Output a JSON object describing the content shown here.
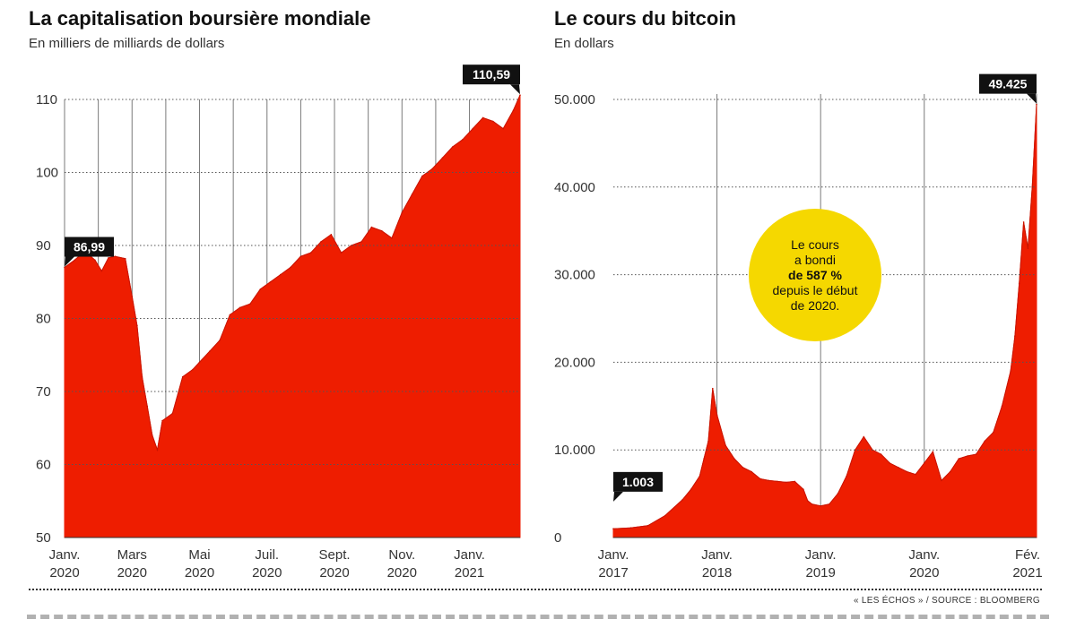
{
  "charts": [
    {
      "title": "La capitalisation boursière mondiale",
      "subtitle": "En milliers de milliards de dollars",
      "callouts": {
        "start": "86,99",
        "end": "110,59"
      },
      "y_ticks": [
        "110",
        "100",
        "90",
        "80",
        "70",
        "60",
        "50"
      ],
      "x_labels": [
        {
          "line1": "Janv.",
          "line2": "2020"
        },
        {
          "line1": "Mars",
          "line2": "2020"
        },
        {
          "line1": "Mai",
          "line2": "2020"
        },
        {
          "line1": "Juil.",
          "line2": "2020"
        },
        {
          "line1": "Sept.",
          "line2": "2020"
        },
        {
          "line1": "Nov.",
          "line2": "2020"
        },
        {
          "line1": "Janv.",
          "line2": "2021"
        }
      ],
      "colors": {
        "fill": "#ee1d00",
        "callout_bg": "#111111",
        "grid": "#888888"
      }
    },
    {
      "title": "Le cours du bitcoin",
      "subtitle": "En dollars",
      "callouts": {
        "start": "1.003",
        "end": "49.425"
      },
      "annotation": {
        "line1": "Le cours",
        "line2": "a bondi",
        "line3": "de 587 %",
        "line4": "depuis le début",
        "line5": "de 2020."
      },
      "y_ticks": [
        "50.000",
        "40.000",
        "30.000",
        "20.000",
        "10.000",
        "0"
      ],
      "x_labels": [
        {
          "line1": "Janv.",
          "line2": "2017"
        },
        {
          "line1": "Janv.",
          "line2": "2018"
        },
        {
          "line1": "Janv.",
          "line2": "2019"
        },
        {
          "line1": "Janv.",
          "line2": "2020"
        },
        {
          "line1": "Fév.",
          "line2": "2021"
        }
      ],
      "colors": {
        "fill": "#ee1d00",
        "callout_bg": "#111111",
        "bubble": "#f5d800"
      }
    }
  ],
  "source": "« LES ÉCHOS » / SOURCE : BLOOMBERG",
  "chart_data": [
    {
      "type": "area",
      "title": "La capitalisation boursière mondiale",
      "ylabel": "En milliers de milliards de dollars",
      "ylim": [
        50,
        110
      ],
      "x_unit": "month index (0 = Janv. 2020)",
      "x_tick_values": [
        0,
        2,
        4,
        6,
        8,
        10,
        12
      ],
      "x_tick_labels": [
        "Janv. 2020",
        "Mars 2020",
        "Mai 2020",
        "Juil. 2020",
        "Sept. 2020",
        "Nov. 2020",
        "Janv. 2021"
      ],
      "x": [
        0,
        0.3,
        0.6,
        0.9,
        1.1,
        1.3,
        1.5,
        1.8,
        2.0,
        2.15,
        2.3,
        2.45,
        2.6,
        2.75,
        2.9,
        3.2,
        3.5,
        3.8,
        4.0,
        4.3,
        4.6,
        4.9,
        5.2,
        5.5,
        5.8,
        6.1,
        6.4,
        6.7,
        7.0,
        7.3,
        7.6,
        7.9,
        8.2,
        8.5,
        8.8,
        9.1,
        9.4,
        9.7,
        10.0,
        10.3,
        10.6,
        10.9,
        11.2,
        11.5,
        11.8,
        12.1,
        12.4,
        12.7,
        13.0,
        13.3,
        13.5
      ],
      "values": [
        86.99,
        88.0,
        89.2,
        88.0,
        86.5,
        88.3,
        88.5,
        88.2,
        83.0,
        79.0,
        72.0,
        68.0,
        64.0,
        62.0,
        66.0,
        67.0,
        72.0,
        73.0,
        74.0,
        75.5,
        77.0,
        80.5,
        81.5,
        82.0,
        84.0,
        85.0,
        86.0,
        87.0,
        88.5,
        89.0,
        90.5,
        91.5,
        89.0,
        90.0,
        90.5,
        92.5,
        92.0,
        91.0,
        94.5,
        97.0,
        99.5,
        100.5,
        102.0,
        103.5,
        104.5,
        106.0,
        107.5,
        107.0,
        106.0,
        108.5,
        110.59
      ]
    },
    {
      "type": "area",
      "title": "Le cours du bitcoin",
      "ylabel": "En dollars",
      "ylim": [
        0,
        50000
      ],
      "x_unit": "month index (0 = Janv. 2017)",
      "x_tick_values": [
        0,
        12,
        24,
        36,
        49
      ],
      "x_tick_labels": [
        "Janv. 2017",
        "Janv. 2018",
        "Janv. 2019",
        "Janv. 2020",
        "Fév. 2021"
      ],
      "x": [
        0,
        2,
        4,
        6,
        8,
        9,
        10,
        10.5,
        11,
        11.5,
        12,
        13,
        14,
        15,
        16,
        17,
        18,
        19,
        20,
        21,
        22,
        22.5,
        23,
        24,
        25,
        26,
        27,
        28,
        29,
        30,
        31,
        32,
        33,
        34,
        35,
        36,
        37,
        38,
        39,
        40,
        41,
        42,
        43,
        44,
        45,
        46,
        46.5,
        47,
        47.5,
        48,
        48.5,
        49
      ],
      "values": [
        1003,
        1100,
        1350,
        2500,
        4300,
        5500,
        7000,
        9000,
        11000,
        17000,
        14000,
        10500,
        9000,
        8000,
        7500,
        6700,
        6500,
        6400,
        6300,
        6400,
        5500,
        4200,
        3800,
        3600,
        3800,
        5000,
        7000,
        10000,
        11500,
        10000,
        9500,
        8500,
        8000,
        7500,
        7200,
        8500,
        9800,
        6500,
        7500,
        9000,
        9300,
        9500,
        11000,
        12000,
        15000,
        19000,
        23000,
        29000,
        36000,
        33000,
        40000,
        49425
      ]
    }
  ]
}
